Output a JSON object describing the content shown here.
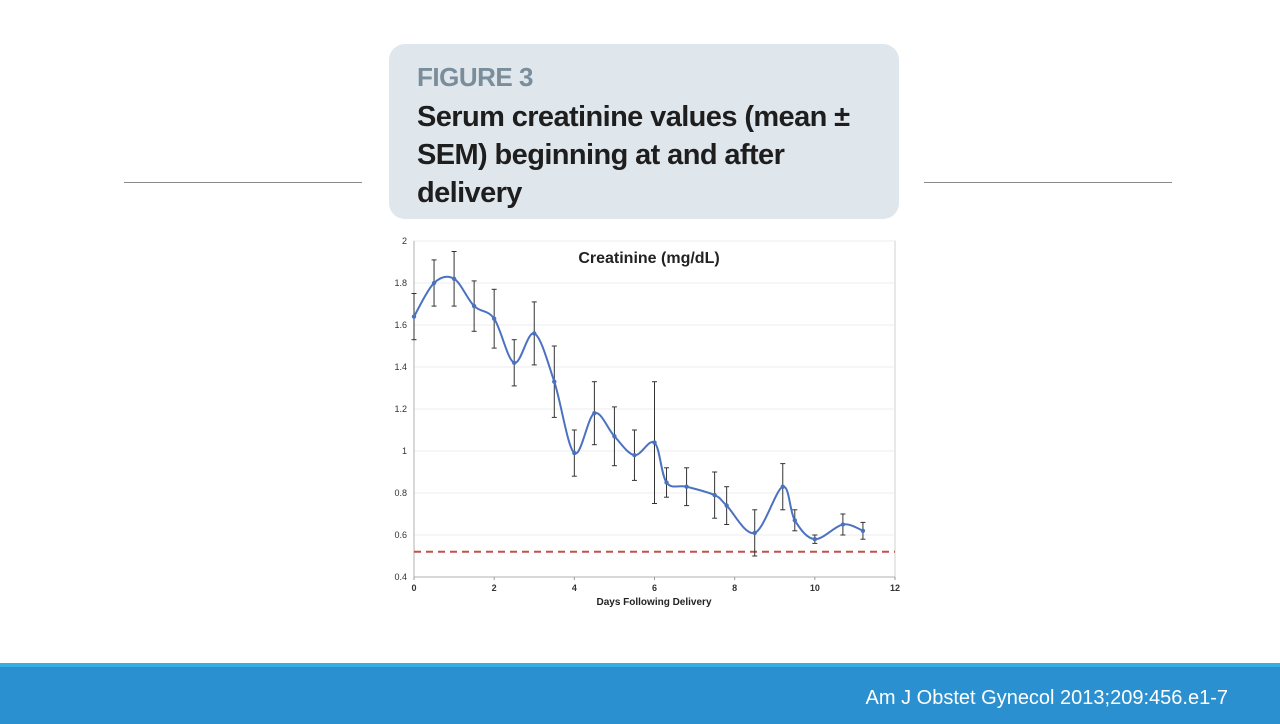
{
  "slide": {
    "figure_label": "FIGURE 3",
    "figure_title": "Serum creatinine values (mean ± SEM) beginning at and after delivery",
    "citation": "Am J Obstet Gynecol 2013;209:456.e1-7"
  },
  "colors": {
    "line": "#4a72c0",
    "reference": "#c0504d",
    "footer": "#2a90cf"
  },
  "chart_data": {
    "type": "line",
    "title": "Creatinine (mg/dL)",
    "xlabel": "Days Following Delivery",
    "ylabel": "",
    "xlim": [
      0,
      12
    ],
    "ylim": [
      0.4,
      2
    ],
    "x_ticks": [
      "0",
      "2",
      "4",
      "6",
      "8",
      "10",
      "12"
    ],
    "y_ticks": [
      "0.4",
      "0.6",
      "0.8",
      "1",
      "1.2",
      "1.4",
      "1.6",
      "1.8",
      "2"
    ],
    "grid": true,
    "reference_line": {
      "y": 0.52,
      "style": "dashed"
    },
    "series": [
      {
        "x": [
          0,
          0.5,
          1,
          1.5,
          2,
          2.5,
          3,
          3.5,
          4,
          4.5,
          5,
          5.5,
          6,
          6.3,
          6.8,
          7.5,
          7.8,
          8.5,
          9.2,
          9.5,
          10,
          10.7,
          11.2
        ],
        "y": [
          1.64,
          1.8,
          1.82,
          1.69,
          1.63,
          1.42,
          1.56,
          1.33,
          0.99,
          1.18,
          1.07,
          0.98,
          1.04,
          0.85,
          0.83,
          0.79,
          0.74,
          0.61,
          0.83,
          0.67,
          0.58,
          0.65,
          0.62
        ],
        "err": [
          0.11,
          0.11,
          0.13,
          0.12,
          0.14,
          0.11,
          0.15,
          0.17,
          0.11,
          0.15,
          0.14,
          0.12,
          0.29,
          0.07,
          0.09,
          0.11,
          0.09,
          0.11,
          0.11,
          0.05,
          0.02,
          0.05,
          0.04
        ]
      }
    ]
  }
}
